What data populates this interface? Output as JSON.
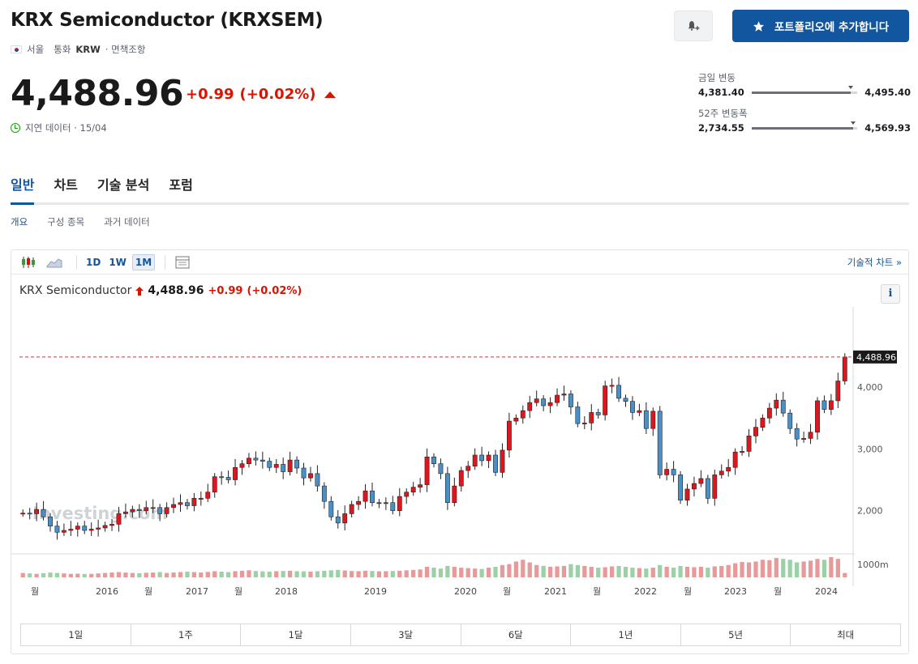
{
  "header": {
    "title": "KRX Semiconductor (KRXSEM)",
    "exchange": "서울",
    "currency_label": "통화",
    "currency": "KRW",
    "disclaimer": "· 면책조항",
    "alert_icon": "bell-plus-icon",
    "portfolio_button": "포트폴리오에 추가합니다"
  },
  "quote": {
    "price": "4,488.96",
    "change": "+0.99",
    "change_pct": "(+0.02%)",
    "delay_text": "지연 데이터 · 15/04",
    "up_color": "#d91400"
  },
  "ranges": {
    "day_label": "금일 변동",
    "day_low": "4,381.40",
    "day_high": "4,495.40",
    "day_position": 0.94,
    "week52_label": "52주 변동폭",
    "week52_low": "2,734.55",
    "week52_high": "4,569.93",
    "week52_position": 0.96
  },
  "tabs": [
    "일반",
    "차트",
    "기술 분석",
    "포럼"
  ],
  "subtabs": [
    "개요",
    "구성 종목",
    "과거 데이터"
  ],
  "chart_toolbar": {
    "intervals": [
      "1D",
      "1W",
      "1M"
    ],
    "selected_interval": "1M",
    "tech_chart_link": "기술적 차트 »"
  },
  "chart_legend": {
    "name": "KRX Semiconductor",
    "price": "4,488.96",
    "change": "+0.99",
    "change_pct": "(+0.02%)"
  },
  "periods": [
    "1일",
    "1주",
    "1달",
    "3달",
    "6달",
    "1년",
    "5년",
    "최대"
  ],
  "chart_data": {
    "type": "candlestick",
    "title": "KRX Semiconductor",
    "interval": "1M",
    "y_ticks": [
      "2,000",
      "3,000",
      "4,000"
    ],
    "ylim": [
      1300,
      5300
    ],
    "last_price_label": "4,488.96",
    "volume_tick": "1000m",
    "x_tick_labels": [
      "월",
      "2016",
      "월",
      "2017",
      "월",
      "2018",
      "2019",
      "2020",
      "월",
      "2021",
      "월",
      "2022",
      "월",
      "2023",
      "월",
      "2024"
    ],
    "watermark": "Investing.com",
    "up_color": "#e0161e",
    "down_color": "#4a90c8",
    "closes": [
      1960,
      1950,
      2020,
      1900,
      1750,
      1650,
      1680,
      1700,
      1750,
      1680,
      1700,
      1720,
      1760,
      1780,
      1950,
      1980,
      2020,
      2000,
      2050,
      2050,
      1950,
      2050,
      2100,
      2130,
      2080,
      2200,
      2200,
      2300,
      2550,
      2540,
      2500,
      2700,
      2760,
      2850,
      2820,
      2800,
      2700,
      2750,
      2630,
      2820,
      2690,
      2530,
      2600,
      2400,
      2150,
      1900,
      1800,
      1950,
      2100,
      2150,
      2320,
      2130,
      2130,
      2130,
      2000,
      2230,
      2300,
      2380,
      2420,
      2870,
      2760,
      2600,
      2130,
      2400,
      2650,
      2720,
      2900,
      2810,
      2900,
      2620,
      2980,
      3450,
      3500,
      3620,
      3750,
      3810,
      3700,
      3750,
      3870,
      3890,
      3680,
      3410,
      3420,
      3590,
      3550,
      4020,
      4030,
      3820,
      3770,
      3590,
      3620,
      3330,
      3610,
      2580,
      2670,
      2580,
      2170,
      2350,
      2440,
      2520,
      2200,
      2580,
      2640,
      2700,
      2950,
      2960,
      3210,
      3350,
      3500,
      3660,
      3790,
      3580,
      3330,
      3160,
      3170,
      3270,
      3780,
      3640,
      3780,
      4100,
      4488.96
    ],
    "opens": [
      1960,
      1960,
      1950,
      2020,
      1900,
      1750,
      1650,
      1680,
      1700,
      1750,
      1680,
      1700,
      1720,
      1760,
      1780,
      1950,
      1980,
      2020,
      2000,
      2050,
      2050,
      1950,
      2050,
      2100,
      2130,
      2080,
      2200,
      2200,
      2300,
      2550,
      2540,
      2500,
      2700,
      2760,
      2850,
      2820,
      2800,
      2700,
      2750,
      2630,
      2820,
      2690,
      2530,
      2600,
      2400,
      2150,
      1900,
      1800,
      1950,
      2100,
      2150,
      2320,
      2130,
      2130,
      2130,
      2000,
      2230,
      2300,
      2380,
      2420,
      2870,
      2760,
      2600,
      2130,
      2400,
      2650,
      2720,
      2900,
      2810,
      2900,
      2620,
      2980,
      3450,
      3500,
      3620,
      3750,
      3810,
      3700,
      3750,
      3870,
      3890,
      3680,
      3410,
      3420,
      3590,
      3550,
      4020,
      4030,
      3820,
      3770,
      3590,
      3620,
      3330,
      3610,
      2580,
      2670,
      2580,
      2170,
      2350,
      2440,
      2520,
      2200,
      2580,
      2640,
      2700,
      2950,
      2960,
      3210,
      3350,
      3500,
      3660,
      3790,
      3580,
      3330,
      3160,
      3170,
      3270,
      3780,
      3640,
      3780,
      4100
    ],
    "volumes": [
      50,
      45,
      40,
      48,
      55,
      50,
      45,
      40,
      42,
      38,
      40,
      45,
      50,
      55,
      60,
      55,
      50,
      48,
      52,
      55,
      60,
      50,
      55,
      60,
      65,
      60,
      55,
      62,
      70,
      65,
      60,
      70,
      75,
      80,
      72,
      68,
      65,
      70,
      72,
      75,
      70,
      68,
      65,
      70,
      75,
      80,
      85,
      78,
      72,
      70,
      75,
      72,
      68,
      70,
      72,
      75,
      80,
      85,
      90,
      120,
      110,
      100,
      130,
      120,
      110,
      105,
      100,
      95,
      110,
      120,
      140,
      150,
      180,
      200,
      170,
      140,
      130,
      120,
      125,
      130,
      150,
      140,
      130,
      120,
      110,
      115,
      125,
      130,
      120,
      110,
      105,
      100,
      110,
      140,
      120,
      110,
      130,
      120,
      115,
      120,
      110,
      125,
      130,
      140,
      160,
      175,
      170,
      180,
      200,
      195,
      220,
      210,
      200,
      170,
      180,
      190,
      210,
      200,
      230,
      210,
      50
    ]
  }
}
